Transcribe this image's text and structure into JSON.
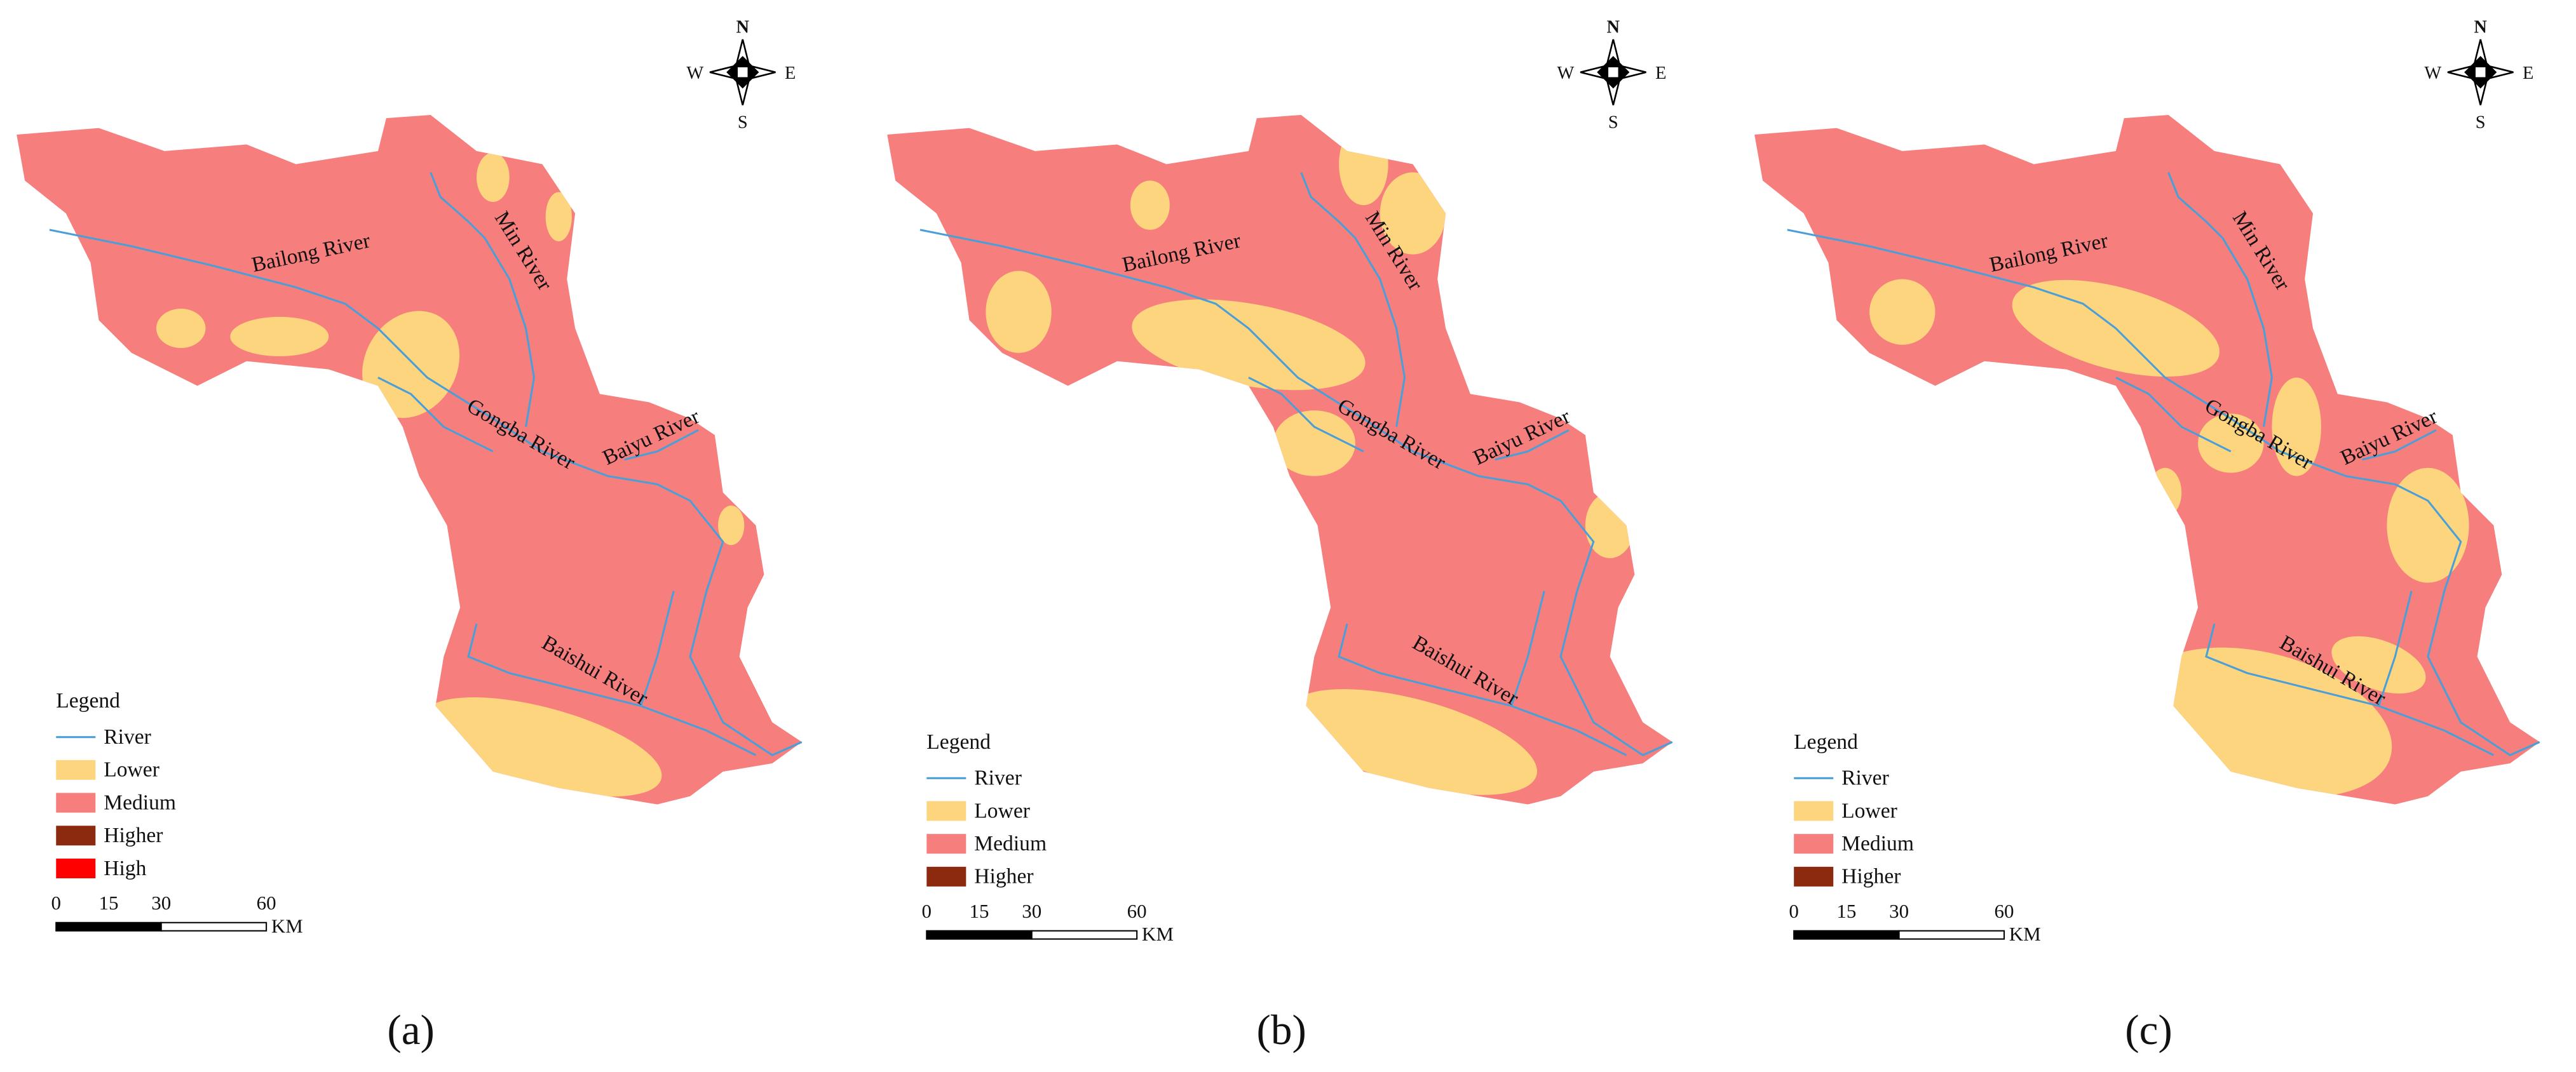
{
  "panels": [
    {
      "label": "(a)",
      "rivers": [
        "Bailong River",
        "Min River",
        "Gongba River",
        "Baiyu River",
        "Baishui River"
      ],
      "compass": {
        "n": "N",
        "s": "S",
        "w": "W",
        "e": "E"
      },
      "legend": {
        "title": "Legend",
        "items": [
          {
            "label": "River",
            "color": "#4a9fd8"
          },
          {
            "label": "Lower",
            "color": "#fcd57e"
          },
          {
            "label": "Medium",
            "color": "#f67e7d"
          },
          {
            "label": "Higher",
            "color": "#8b2a0e"
          },
          {
            "label": "High",
            "color": "#ff0000"
          }
        ]
      },
      "scale": {
        "ticks": [
          0,
          15,
          30,
          60
        ],
        "unit": "KM"
      }
    },
    {
      "label": "(b)",
      "rivers": [
        "Bailong River",
        "Min River",
        "Gongba River",
        "Baiyu River",
        "Baishui River"
      ],
      "compass": {
        "n": "N",
        "s": "S",
        "w": "W",
        "e": "E"
      },
      "legend": {
        "title": "Legend",
        "items": [
          {
            "label": "River",
            "color": "#4a9fd8"
          },
          {
            "label": "Lower",
            "color": "#fcd57e"
          },
          {
            "label": "Medium",
            "color": "#f67e7d"
          },
          {
            "label": "Higher",
            "color": "#8b2a0e"
          }
        ]
      },
      "scale": {
        "ticks": [
          0,
          15,
          30,
          60
        ],
        "unit": "KM"
      }
    },
    {
      "label": "(c)",
      "rivers": [
        "Bailong River",
        "Min River",
        "Gongba River",
        "Baiyu River",
        "Baishui River"
      ],
      "compass": {
        "n": "N",
        "s": "S",
        "w": "W",
        "e": "E"
      },
      "legend": {
        "title": "Legend",
        "items": [
          {
            "label": "River",
            "color": "#4a9fd8"
          },
          {
            "label": "Lower",
            "color": "#fcd57e"
          },
          {
            "label": "Medium",
            "color": "#f67e7d"
          },
          {
            "label": "Higher",
            "color": "#8b2a0e"
          }
        ]
      },
      "scale": {
        "ticks": [
          0,
          15,
          30,
          60
        ],
        "unit": "KM"
      }
    }
  ]
}
